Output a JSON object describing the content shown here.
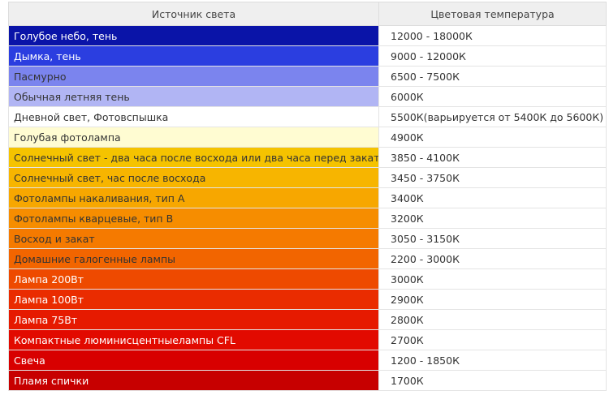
{
  "table": {
    "header": [
      "Источник света",
      "Цветовая температура"
    ],
    "rows": [
      [
        "Голубое небо, тень",
        "12000 - 18000К"
      ],
      [
        "Дымка, тень",
        "9000 - 12000К"
      ],
      [
        "Пасмурно",
        "6500 - 7500К"
      ],
      [
        "Обычная летняя тень",
        "6000К"
      ],
      [
        "Дневной свет, Фотовспышка",
        "5500К(варьируется от 5400К до 5600К)"
      ],
      [
        "Голубая фотолампа",
        "4900К"
      ],
      [
        "Солнечный свет - два часа после восхода или два часа перед закатом",
        "3850 - 4100К"
      ],
      [
        "Солнечный свет, час после восхода",
        "3450 - 3750К"
      ],
      [
        "Фотолампы накаливания, тип А",
        "3400К"
      ],
      [
        "Фотолампы кварцевые, тип В",
        "3200К"
      ],
      [
        "Восход и закат",
        "3050 - 3150К"
      ],
      [
        "Домашние галогенные лампы",
        "2200 - 3000К"
      ],
      [
        "Лампа 200Вт",
        "3000К"
      ],
      [
        "Лампа 100Вт",
        "2900К"
      ],
      [
        "Лампа 75Вт",
        "2800К"
      ],
      [
        "Компактные люминисцентныелампы CFL",
        "2700К"
      ],
      [
        "Свеча",
        "1200 - 1850К"
      ],
      [
        "Пламя спички",
        "1700К"
      ]
    ]
  }
}
